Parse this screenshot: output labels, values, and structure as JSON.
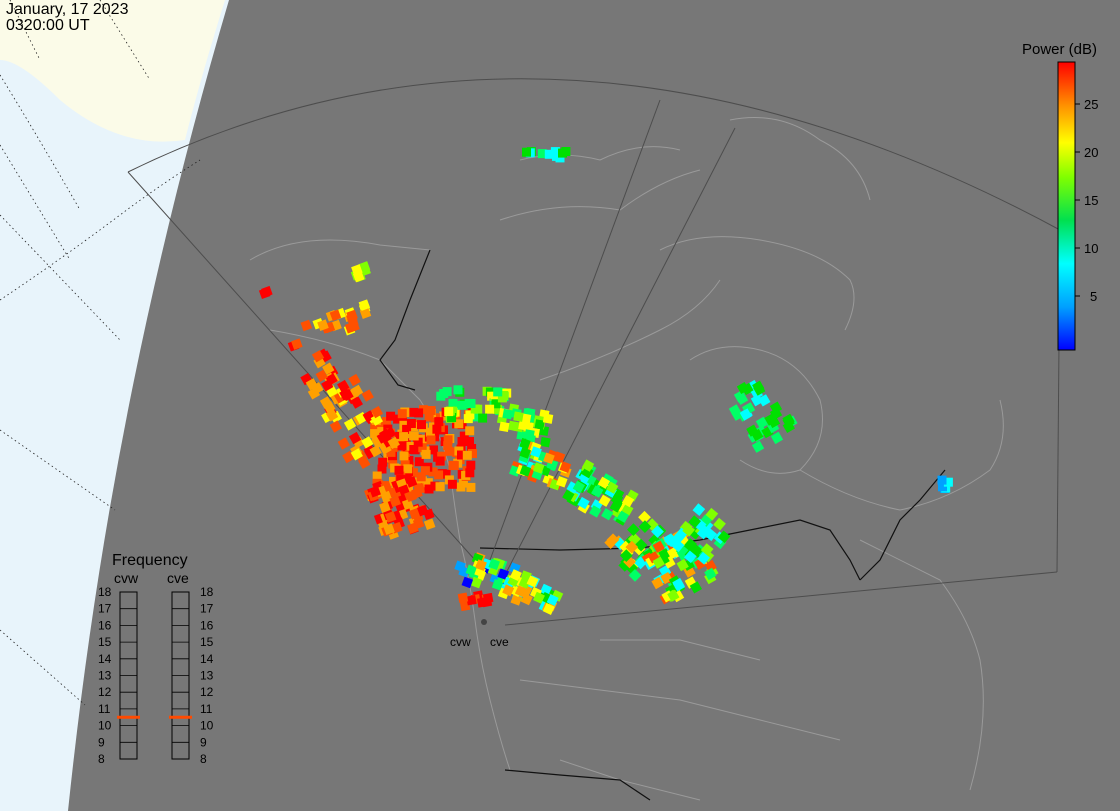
{
  "header": {
    "date": "January, 17 2023",
    "time": "0320:00 UT"
  },
  "colors": {
    "sea": "#e8f4fb",
    "night": "#777777",
    "ice": "#fbfbe8",
    "borders": "#9a9a9a",
    "radar_boundary": "#4d4d4d",
    "power_scale": [
      "#0000ff",
      "#00a0ff",
      "#00ffff",
      "#00ff66",
      "#00e000",
      "#80ff00",
      "#ffff00",
      "#ffa000",
      "#ff5000",
      "#ff0000"
    ]
  },
  "power_scale": {
    "title": "Power (dB)",
    "ticks": [
      "25",
      "20",
      "15",
      "10",
      "5"
    ]
  },
  "frequency_panel": {
    "title": "Frequency",
    "radars": [
      "cvw",
      "cve"
    ],
    "ticks": [
      "18",
      "17",
      "16",
      "15",
      "14",
      "13",
      "12",
      "11",
      "10",
      "9",
      "8"
    ],
    "cvw_value_mhz": 10.5,
    "cve_value_mhz": 10.5
  },
  "radar_sites": {
    "west": "cvw",
    "east": "cve"
  },
  "icons": {
    "radar_site": "radar-site-icon"
  }
}
